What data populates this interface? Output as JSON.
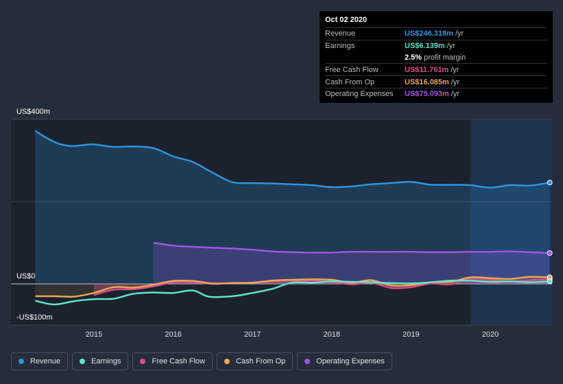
{
  "chart_data": {
    "type": "area",
    "title": "",
    "xlabel": "",
    "ylabel": "",
    "ylim": [
      -100,
      400
    ],
    "y_axis_labels": [
      "US$400m",
      "US$0",
      "-US$100m"
    ],
    "x_ticks": [
      "2015",
      "2016",
      "2017",
      "2018",
      "2019",
      "2020"
    ],
    "grid": true,
    "legend_position": "bottom",
    "series": [
      {
        "name": "Revenue",
        "color": "#2d94e0",
        "x": [
          2014.26,
          2014.4,
          2014.55,
          2014.72,
          2014.85,
          2015.0,
          2015.25,
          2015.5,
          2015.75,
          2016.0,
          2016.25,
          2016.5,
          2016.75,
          2017.0,
          2017.25,
          2017.5,
          2017.75,
          2018.0,
          2018.25,
          2018.5,
          2018.75,
          2019.0,
          2019.25,
          2019.5,
          2019.75,
          2020.0,
          2020.25,
          2020.5,
          2020.75
        ],
        "values": [
          372,
          355,
          341,
          335,
          337,
          339,
          333,
          334,
          330,
          310,
          296,
          270,
          247,
          245,
          244,
          242,
          240,
          235,
          237,
          242,
          245,
          248,
          241,
          241,
          240,
          234,
          240,
          239,
          246.3
        ]
      },
      {
        "name": "Earnings",
        "color": "#5ee5c9",
        "x": [
          2014.26,
          2014.5,
          2014.75,
          2015.0,
          2015.25,
          2015.5,
          2015.75,
          2016.0,
          2016.25,
          2016.45,
          2016.75,
          2017.0,
          2017.25,
          2017.5,
          2017.75,
          2018.0,
          2018.25,
          2018.5,
          2018.75,
          2019.0,
          2019.25,
          2019.5,
          2019.75,
          2020.0,
          2020.25,
          2020.5,
          2020.75
        ],
        "values": [
          -41,
          -50,
          -42,
          -37,
          -36,
          -24,
          -21,
          -22,
          -16,
          -31,
          -30,
          -22,
          -12,
          3,
          3,
          6,
          5,
          4,
          2,
          1,
          4,
          8,
          8,
          5,
          6,
          4,
          6.1
        ]
      },
      {
        "name": "Free Cash Flow",
        "color": "#d74e83",
        "x": [
          2015.0,
          2015.25,
          2015.5,
          2015.75,
          2016.0,
          2016.25,
          2016.5,
          2016.75,
          2017.0,
          2017.25,
          2017.5,
          2017.75,
          2018.0,
          2018.25,
          2018.5,
          2018.75,
          2019.0,
          2019.25,
          2019.5,
          2019.75,
          2020.0,
          2020.25,
          2020.5,
          2020.75
        ],
        "values": [
          -27,
          -14,
          -13,
          -6,
          4,
          4,
          0,
          2,
          3,
          6,
          8,
          8,
          5,
          -1,
          3,
          -10,
          -8,
          1,
          -1,
          13,
          10,
          6,
          9,
          11.8
        ]
      },
      {
        "name": "Cash From Op",
        "color": "#e9a75b",
        "x": [
          2014.26,
          2014.5,
          2014.75,
          2015.0,
          2015.25,
          2015.5,
          2015.75,
          2016.0,
          2016.25,
          2016.5,
          2016.75,
          2017.0,
          2017.25,
          2017.5,
          2017.75,
          2018.0,
          2018.25,
          2018.5,
          2018.75,
          2019.0,
          2019.25,
          2019.5,
          2019.75,
          2020.0,
          2020.25,
          2020.5,
          2020.75
        ],
        "values": [
          -30,
          -30,
          -31,
          -22,
          -8,
          -9,
          -2,
          7,
          7,
          1,
          2,
          3,
          8,
          10,
          11,
          10,
          3,
          9,
          -4,
          -3,
          4,
          5,
          16,
          14,
          12,
          17,
          16.1
        ]
      },
      {
        "name": "Operating Expenses",
        "color": "#a153e8",
        "x": [
          2015.75,
          2016.0,
          2016.25,
          2016.5,
          2016.75,
          2017.0,
          2017.25,
          2017.5,
          2017.75,
          2018.0,
          2018.25,
          2018.5,
          2018.75,
          2019.0,
          2019.25,
          2019.5,
          2019.75,
          2020.0,
          2020.25,
          2020.5,
          2020.75
        ],
        "values": [
          100,
          93,
          90,
          88,
          86,
          83,
          79,
          77,
          76,
          76,
          78,
          78,
          78,
          78,
          77,
          77,
          78,
          78,
          79,
          77,
          75.1
        ]
      }
    ],
    "highlight_from": 2019.75
  },
  "tooltip": {
    "date": "Oct 02 2020",
    "rows": [
      {
        "label": "Revenue",
        "value": "US$246.318m",
        "unit": "/yr",
        "color": "#2d94e0"
      },
      {
        "label": "Earnings",
        "value": "US$6.139m",
        "unit": "/yr",
        "color": "#5ee5c9"
      },
      {
        "label": "",
        "value": "2.5%",
        "unit": "profit margin",
        "color": "#ffffff"
      },
      {
        "label": "Free Cash Flow",
        "value": "US$11.761m",
        "unit": "/yr",
        "color": "#d74e83"
      },
      {
        "label": "Cash From Op",
        "value": "US$16.085m",
        "unit": "/yr",
        "color": "#e9a75b"
      },
      {
        "label": "Operating Expenses",
        "value": "US$75.093m",
        "unit": "/yr",
        "color": "#a153e8"
      }
    ]
  },
  "legend": [
    {
      "label": "Revenue",
      "color": "#2d94e0"
    },
    {
      "label": "Earnings",
      "color": "#5ee5c9"
    },
    {
      "label": "Free Cash Flow",
      "color": "#d74e83"
    },
    {
      "label": "Cash From Op",
      "color": "#e9a75b"
    },
    {
      "label": "Operating Expenses",
      "color": "#a153e8"
    }
  ]
}
